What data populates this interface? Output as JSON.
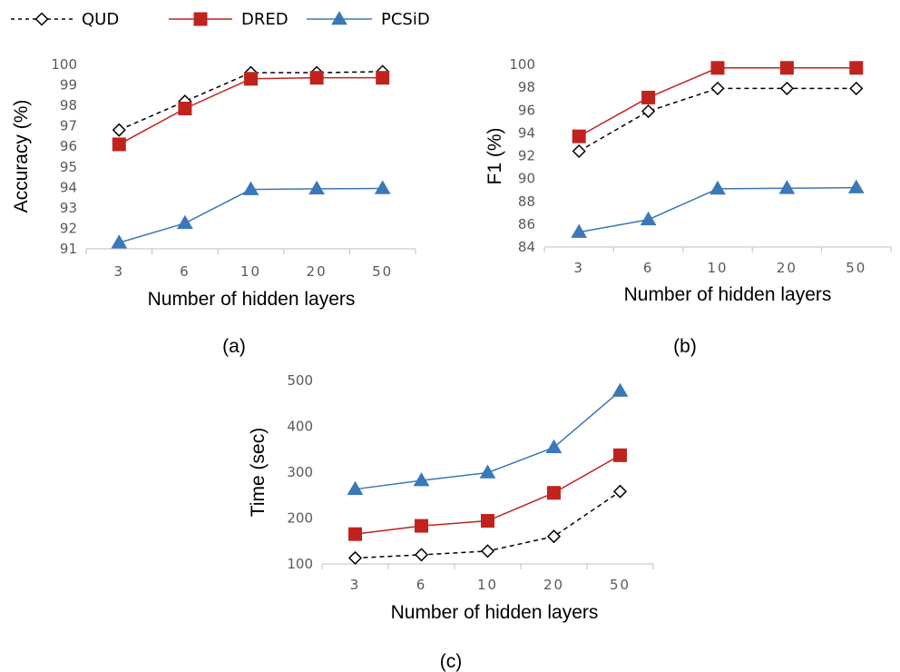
{
  "legend": [
    {
      "name": "QUD",
      "color": "#000000",
      "marker": "diamond",
      "dash": true
    },
    {
      "name": "DRED",
      "color": "#C0231E",
      "marker": "square",
      "dash": false
    },
    {
      "name": "PCSiD",
      "color": "#3A78B8",
      "marker": "triangle",
      "dash": false
    }
  ],
  "chart_data": [
    {
      "type": "line",
      "caption": "(a)",
      "categories": [
        "3",
        "6",
        "10",
        "20",
        "50"
      ],
      "xlabel": "Number of hidden layers",
      "ylabel": "Accuracy (%)",
      "ylim": [
        91,
        100
      ],
      "yticks": [
        91,
        92,
        93,
        94,
        95,
        96,
        97,
        98,
        99,
        100
      ],
      "series": [
        {
          "name": "QUD",
          "values": [
            96.8,
            98.2,
            99.6,
            99.6,
            99.65
          ]
        },
        {
          "name": "DRED",
          "values": [
            96.1,
            97.85,
            99.3,
            99.35,
            99.35
          ]
        },
        {
          "name": "PCSiD",
          "values": [
            91.3,
            92.25,
            93.9,
            93.93,
            93.95
          ]
        }
      ]
    },
    {
      "type": "line",
      "caption": "(b)",
      "categories": [
        "3",
        "6",
        "10",
        "20",
        "50"
      ],
      "xlabel": "Number of hidden layers",
      "ylabel": "F1 (%)",
      "ylim": [
        84,
        100
      ],
      "yticks": [
        84,
        86,
        88,
        90,
        92,
        94,
        96,
        98,
        100
      ],
      "series": [
        {
          "name": "QUD",
          "values": [
            92.4,
            95.9,
            97.9,
            97.9,
            97.9
          ]
        },
        {
          "name": "DRED",
          "values": [
            93.7,
            97.1,
            99.7,
            99.7,
            99.7
          ]
        },
        {
          "name": "PCSiD",
          "values": [
            85.3,
            86.4,
            89.1,
            89.15,
            89.2
          ]
        }
      ]
    },
    {
      "type": "line",
      "caption": "(c)",
      "categories": [
        "3",
        "6",
        "10",
        "20",
        "50"
      ],
      "xlabel": "Number of hidden layers",
      "ylabel": "Time (sec)",
      "ylim": [
        100,
        500
      ],
      "yticks": [
        100,
        200,
        300,
        400,
        500
      ],
      "series": [
        {
          "name": "QUD",
          "values": [
            113,
            120,
            128,
            160,
            258
          ]
        },
        {
          "name": "DRED",
          "values": [
            165,
            183,
            194,
            255,
            337
          ]
        },
        {
          "name": "PCSiD",
          "values": [
            263,
            282,
            299,
            354,
            477
          ]
        }
      ]
    }
  ]
}
